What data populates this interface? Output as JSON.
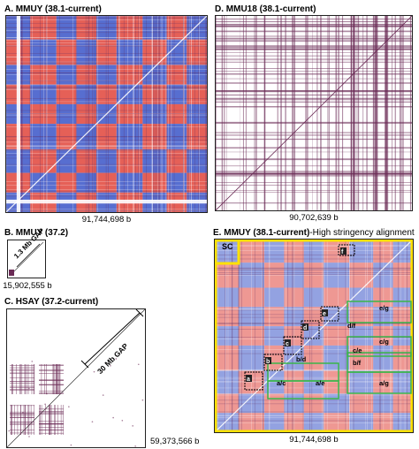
{
  "panels": {
    "A": {
      "letter": "A.",
      "title": "MMUY (38.1-current)",
      "size_label": "91,744,698 b"
    },
    "B": {
      "letter": "B.",
      "title": "MMUY (37.2)",
      "size_label": "15,902,555 b",
      "gap_label": "1.3 Mb GAP"
    },
    "C": {
      "letter": "C.",
      "title": "HSAY (37.2-current)",
      "size_label": "59,373,566 b",
      "gap_label": "30 Mb GAP"
    },
    "D": {
      "letter": "D.",
      "title": "MMU18 (38.1-current)",
      "size_label": "90,702,639 b"
    },
    "E": {
      "letter": "E.",
      "title": "MMUY (38.1-current)",
      "title_suffix": "-High stringency alignment",
      "size_label": "91,744,698 b",
      "region_labels": [
        "SC",
        "e/g",
        "d/f",
        "c/g",
        "b/d",
        "c/e",
        "b/f",
        "a/c",
        "a/e",
        "a/g"
      ],
      "box_labels": [
        "f",
        "e",
        "d",
        "c",
        "b",
        "a"
      ]
    }
  },
  "colors": {
    "forward": "#3a55c8",
    "reverse": "#e0443a",
    "dot": "#6a2a55",
    "green": "#3ab54a",
    "yellow": "#ffe100"
  }
}
